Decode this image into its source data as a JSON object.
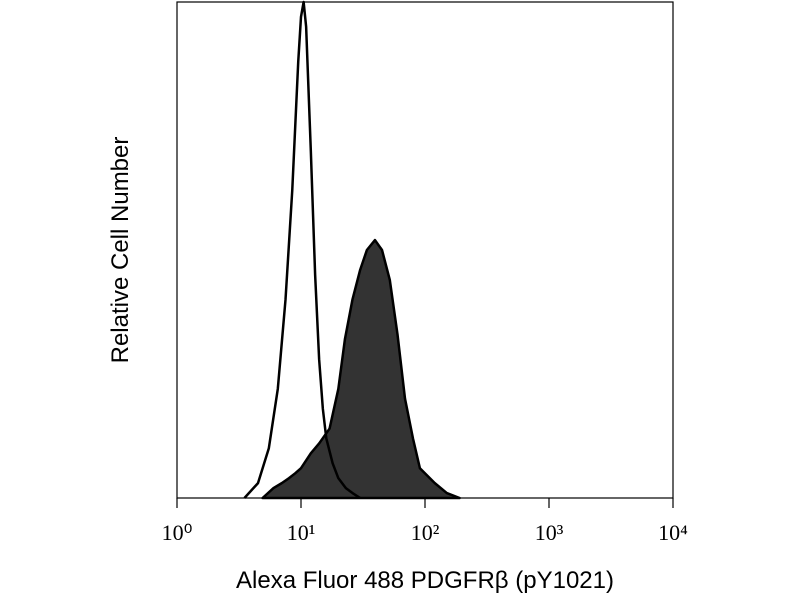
{
  "chart_data": {
    "type": "histogram-overlay",
    "xlabel": "Alexa Fluor 488 PDGFRβ (pY1021)",
    "ylabel": "Relative Cell Number",
    "xscale": "log",
    "xlim": [
      1,
      10000
    ],
    "xticks": [
      {
        "value": 1,
        "label": "10⁰"
      },
      {
        "value": 10,
        "label": "10¹"
      },
      {
        "value": 100,
        "label": "10²"
      },
      {
        "value": 1000,
        "label": "10³"
      },
      {
        "value": 10000,
        "label": "10⁴"
      }
    ],
    "ylim": [
      0,
      100
    ],
    "series": [
      {
        "color": "#333333",
        "filled": true,
        "x": [
          4.9,
          6,
          7,
          8,
          9,
          10,
          12,
          14,
          17,
          20,
          22.6,
          26,
          30,
          34,
          39.5,
          45,
          52,
          60,
          69,
          80,
          91,
          120,
          150,
          190
        ],
        "values": [
          0,
          2,
          3,
          4,
          5,
          6,
          9,
          11,
          14,
          22,
          32,
          40,
          46,
          50,
          52,
          50,
          44,
          33,
          20,
          12,
          6,
          3,
          1,
          0
        ]
      },
      {
        "color": "#000000",
        "filled": false,
        "x": [
          3.5,
          4.5,
          5.5,
          6.5,
          7.5,
          8.5,
          9.5,
          10,
          10.5,
          11,
          12,
          13,
          14,
          15,
          16,
          18,
          20,
          23,
          26,
          30
        ],
        "values": [
          0,
          3,
          10,
          22,
          40,
          62,
          88,
          97,
          100,
          95,
          70,
          45,
          28,
          18,
          12,
          7,
          4,
          2,
          1,
          0
        ]
      }
    ]
  }
}
